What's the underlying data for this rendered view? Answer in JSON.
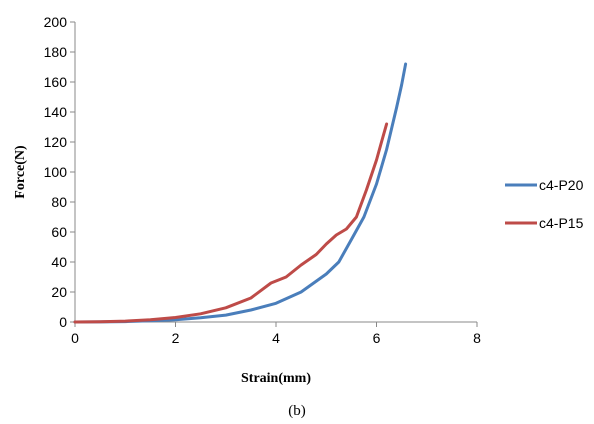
{
  "chart_data": {
    "type": "line",
    "title": "",
    "xlabel": "Strain(mm)",
    "ylabel": "Force(N)",
    "xlim": [
      0,
      8
    ],
    "ylim": [
      0,
      200
    ],
    "xticks": [
      "0",
      "2",
      "4",
      "6",
      "8"
    ],
    "yticks": [
      "0",
      "20",
      "40",
      "60",
      "80",
      "100",
      "120",
      "140",
      "160",
      "180",
      "200"
    ],
    "grid": false,
    "legend_position": "right",
    "series": [
      {
        "name": "c4-P20",
        "color": "#4a7ebb",
        "x": [
          0,
          0.5,
          1.0,
          1.5,
          2.0,
          2.5,
          3.0,
          3.5,
          4.0,
          4.5,
          5.0,
          5.25,
          5.5,
          5.75,
          6.0,
          6.2,
          6.4,
          6.5,
          6.58
        ],
        "y": [
          0,
          0.1,
          0.3,
          0.8,
          1.5,
          2.8,
          4.6,
          8.0,
          12.5,
          20,
          32,
          40,
          55,
          70,
          92,
          115,
          143,
          158,
          172
        ]
      },
      {
        "name": "c4-P15",
        "color": "#be4b48",
        "x": [
          0,
          0.5,
          1.0,
          1.5,
          2.0,
          2.5,
          3.0,
          3.5,
          3.9,
          4.2,
          4.5,
          4.8,
          5.0,
          5.2,
          5.4,
          5.6,
          5.8,
          6.0,
          6.1,
          6.2
        ],
        "y": [
          0,
          0.2,
          0.6,
          1.5,
          3,
          5.5,
          9.5,
          16,
          26,
          30,
          38,
          45,
          52,
          58,
          62,
          70,
          88,
          108,
          120,
          132
        ]
      }
    ],
    "caption": "(b)"
  }
}
